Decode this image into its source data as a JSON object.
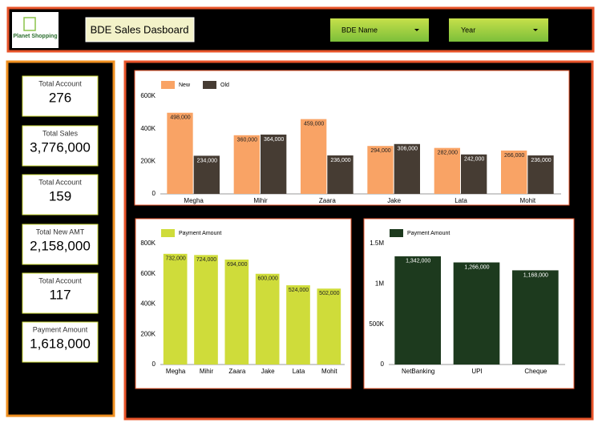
{
  "header": {
    "logo": "Planet Shopping",
    "title": "BDE Sales Dasboard",
    "filters": [
      "BDE Name",
      "Year"
    ]
  },
  "kpis": [
    {
      "label": "Total Account",
      "value": "276"
    },
    {
      "label": "Total Sales",
      "value": "3,776,000"
    },
    {
      "label": "Total Account",
      "value": "159"
    },
    {
      "label": "Total New AMT",
      "value": "2,158,000"
    },
    {
      "label": "Total Account",
      "value": "117"
    },
    {
      "label": "Payment Amount",
      "value": "1,618,000"
    }
  ],
  "chart_data": [
    {
      "type": "bar",
      "categories": [
        "Megha",
        "Mihir",
        "Zaara",
        "Jake",
        "Lata",
        "Mohit"
      ],
      "series": [
        {
          "name": "New",
          "color": "#f9a365",
          "values": [
            498000,
            360000,
            459000,
            294000,
            282000,
            266000
          ],
          "value_labels": [
            "498,000",
            "360,000",
            "459,000",
            "294,000",
            "282,000",
            "266,000"
          ]
        },
        {
          "name": "Old",
          "color": "#463c33",
          "values": [
            234000,
            364000,
            236000,
            306000,
            242000,
            236000
          ],
          "value_labels": [
            "234,000",
            "364,000",
            "236,000",
            "306,000",
            "242,000",
            "236,000"
          ]
        }
      ],
      "ylim": [
        0,
        600000
      ],
      "yticks": [
        0,
        {
          "value": 200000,
          "label": "200K"
        },
        {
          "value": 400000,
          "label": "400K"
        },
        {
          "value": 600000,
          "label": "600K"
        }
      ]
    },
    {
      "type": "bar",
      "categories": [
        "Megha",
        "Mihir",
        "Zaara",
        "Jake",
        "Lata",
        "Mohit"
      ],
      "series": [
        {
          "name": "Payment Amount",
          "color": "#cfdc3a",
          "values": [
            732000,
            724000,
            694000,
            600000,
            524000,
            502000
          ],
          "value_labels": [
            "732,000",
            "724,000",
            "694,000",
            "600,000",
            "524,000",
            "502,000"
          ]
        }
      ],
      "ylim": [
        0,
        800000
      ],
      "yticks": [
        0,
        {
          "value": 200000,
          "label": "200K"
        },
        {
          "value": 400000,
          "label": "400K"
        },
        {
          "value": 600000,
          "label": "600K"
        },
        {
          "value": 800000,
          "label": "800K"
        }
      ]
    },
    {
      "type": "bar",
      "categories": [
        "NetBanking",
        "UPI",
        "Cheque"
      ],
      "series": [
        {
          "name": "Payment Amount",
          "color": "#1d3a1e",
          "values": [
            1342000,
            1266000,
            1168000
          ],
          "value_labels": [
            "1,342,000",
            "1,266,000",
            "1,168,000"
          ]
        }
      ],
      "ylim": [
        0,
        1500000
      ],
      "yticks": [
        0,
        {
          "value": 500000,
          "label": "500K"
        },
        {
          "value": 1000000,
          "label": "1M"
        },
        {
          "value": 1500000,
          "label": "1.5M"
        }
      ]
    }
  ]
}
